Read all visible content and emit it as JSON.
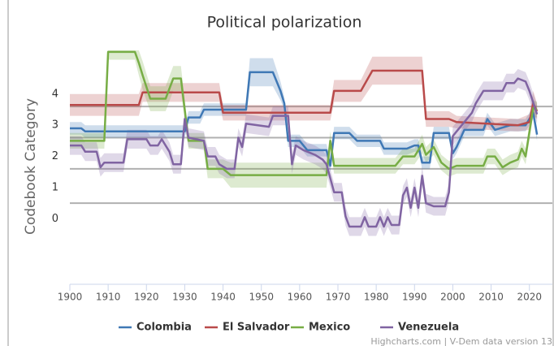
{
  "chart_data": {
    "type": "line",
    "title": "Political polarization",
    "y_axis_label": "Codebook Category",
    "credits": "Highcharts.com | V-Dem data version 13",
    "xlim": [
      1900,
      2026
    ],
    "xticks": [
      1900,
      1910,
      1920,
      1930,
      1940,
      1950,
      1960,
      1970,
      1980,
      1990,
      2000,
      2010,
      2020
    ],
    "ylim": [
      -2.1,
      5.4
    ],
    "yticks": [
      0,
      1,
      2,
      3,
      4
    ],
    "plot_lines": [
      3.6,
      2.6,
      1.6,
      0.5
    ],
    "legend": "bottom",
    "series": [
      {
        "name": "Colombia",
        "color": "#3f78b5",
        "x": [
          1900,
          1903,
          1904,
          1930,
          1931,
          1934,
          1935,
          1946,
          1947,
          1953,
          1955,
          1956,
          1957,
          1960,
          1962,
          1967,
          1968,
          1969,
          1973,
          1975,
          1981,
          1982,
          1988,
          1990,
          1991,
          1992,
          1994,
          1995,
          1999,
          2000,
          2001,
          2003,
          2008,
          2009,
          2011,
          2015,
          2019,
          2021,
          2022
        ],
        "values": [
          2.9,
          2.9,
          2.8,
          2.8,
          3.25,
          3.25,
          3.5,
          3.5,
          4.7,
          4.7,
          4.1,
          3.7,
          2.5,
          2.5,
          2.2,
          2.2,
          1.7,
          2.75,
          2.75,
          2.5,
          2.5,
          2.25,
          2.25,
          2.35,
          2.35,
          1.8,
          1.8,
          2.75,
          2.75,
          2.1,
          2.3,
          2.85,
          2.85,
          3.2,
          2.85,
          3.0,
          3.0,
          3.4,
          2.7
        ],
        "low": [
          2.7,
          2.7,
          2.6,
          2.6,
          3.05,
          3.05,
          3.3,
          3.3,
          4.25,
          4.25,
          3.8,
          3.5,
          2.3,
          2.3,
          2.0,
          2.0,
          1.5,
          2.55,
          2.55,
          2.3,
          2.3,
          2.05,
          2.05,
          2.15,
          2.15,
          1.6,
          1.6,
          2.55,
          2.55,
          1.9,
          2.1,
          2.65,
          2.65,
          3.0,
          2.65,
          2.8,
          2.8,
          3.2,
          2.5
        ],
        "high": [
          3.1,
          3.1,
          3.0,
          3.0,
          3.45,
          3.45,
          3.7,
          3.7,
          5.15,
          5.15,
          4.4,
          3.9,
          2.7,
          2.7,
          2.4,
          2.4,
          1.9,
          2.95,
          2.95,
          2.7,
          2.7,
          2.45,
          2.45,
          2.55,
          2.55,
          2.0,
          2.0,
          2.95,
          2.95,
          2.3,
          2.5,
          3.05,
          3.05,
          3.4,
          3.05,
          3.2,
          3.2,
          3.6,
          2.9
        ]
      },
      {
        "name": "El Salvador",
        "color": "#b94a4a",
        "x": [
          1900,
          1918,
          1919,
          1939,
          1940,
          1968,
          1969,
          1976,
          1979,
          1992,
          1993,
          1999,
          2001,
          2017,
          2020,
          2021,
          2022
        ],
        "values": [
          3.65,
          3.65,
          4.05,
          4.05,
          3.4,
          3.4,
          4.1,
          4.1,
          4.75,
          4.75,
          3.2,
          3.2,
          3.1,
          3.0,
          3.1,
          3.7,
          3.45
        ],
        "low": [
          3.3,
          3.3,
          3.75,
          3.75,
          3.15,
          3.15,
          3.75,
          3.75,
          4.3,
          4.3,
          2.95,
          2.95,
          2.9,
          2.8,
          2.85,
          3.3,
          3.2
        ],
        "high": [
          4.0,
          4.0,
          4.35,
          4.35,
          3.65,
          3.65,
          4.45,
          4.45,
          5.2,
          5.2,
          3.45,
          3.45,
          3.3,
          3.2,
          3.35,
          4.1,
          3.7
        ]
      },
      {
        "name": "Mexico",
        "color": "#77ad45",
        "x": [
          1900,
          1909,
          1910,
          1917,
          1918,
          1919,
          1921,
          1925,
          1927,
          1929,
          1931,
          1935,
          1936,
          1940,
          1942,
          1967,
          1968,
          1969,
          1985,
          1987,
          1990,
          1992,
          1993,
          1995,
          1997,
          1999,
          2001,
          2008,
          2009,
          2011,
          2013,
          2015,
          2017,
          2018,
          2019,
          2021,
          2022
        ],
        "values": [
          2.5,
          2.5,
          5.35,
          5.35,
          5.0,
          4.6,
          3.85,
          3.85,
          4.5,
          4.5,
          2.5,
          2.5,
          1.6,
          1.6,
          1.4,
          1.4,
          2.5,
          1.7,
          1.7,
          2.0,
          2.0,
          2.4,
          2.05,
          2.3,
          1.8,
          1.6,
          1.7,
          1.7,
          2.0,
          2.0,
          1.65,
          1.8,
          1.9,
          2.25,
          2.0,
          3.55,
          3.5
        ],
        "low": [
          2.25,
          2.25,
          5.1,
          5.1,
          4.6,
          4.15,
          3.45,
          3.45,
          4.1,
          4.1,
          2.25,
          2.25,
          1.3,
          1.3,
          1.0,
          1.0,
          2.2,
          1.45,
          1.45,
          1.75,
          1.75,
          2.1,
          1.8,
          2.05,
          1.55,
          1.35,
          1.45,
          1.45,
          1.75,
          1.75,
          1.4,
          1.55,
          1.65,
          2.0,
          1.75,
          3.3,
          3.25
        ],
        "high": [
          2.75,
          2.75,
          5.6,
          5.6,
          5.4,
          5.05,
          4.25,
          4.25,
          4.9,
          4.9,
          2.75,
          2.75,
          1.9,
          1.9,
          1.8,
          1.8,
          2.8,
          1.95,
          1.95,
          2.25,
          2.25,
          2.7,
          2.3,
          2.55,
          2.05,
          1.85,
          1.95,
          1.95,
          2.25,
          2.25,
          1.9,
          2.05,
          2.15,
          2.5,
          2.25,
          3.8,
          3.75
        ]
      },
      {
        "name": "Venezuela",
        "color": "#8064a2",
        "x": [
          1900,
          1903,
          1904,
          1907,
          1908,
          1909,
          1914,
          1915,
          1920,
          1921,
          1923,
          1924,
          1926,
          1927,
          1929,
          1930,
          1931,
          1935,
          1936,
          1938,
          1939,
          1941,
          1943,
          1944,
          1945,
          1946,
          1952,
          1953,
          1957,
          1958,
          1959,
          1961,
          1964,
          1966,
          1967,
          1969,
          1971,
          1972,
          1973,
          1976,
          1977,
          1978,
          1980,
          1981,
          1982,
          1983,
          1984,
          1986,
          1987,
          1988,
          1989,
          1990,
          1991,
          1992,
          1993,
          1995,
          1998,
          1999,
          2000,
          2001,
          2003,
          2005,
          2006,
          2008,
          2013,
          2014,
          2016,
          2017,
          2019,
          2020,
          2022
        ],
        "values": [
          2.35,
          2.35,
          2.15,
          2.15,
          1.65,
          1.8,
          1.8,
          2.55,
          2.55,
          2.35,
          2.35,
          2.55,
          2.15,
          1.75,
          1.75,
          3.2,
          2.6,
          2.5,
          2.0,
          2.0,
          1.75,
          1.6,
          1.6,
          2.6,
          2.3,
          3.05,
          2.95,
          3.3,
          3.3,
          1.75,
          2.35,
          2.2,
          2.05,
          1.9,
          1.75,
          0.85,
          0.85,
          0.08,
          -0.25,
          -0.25,
          0.05,
          -0.25,
          -0.25,
          0.05,
          -0.25,
          0.05,
          -0.2,
          -0.2,
          0.75,
          1.0,
          0.35,
          1.0,
          0.35,
          1.38,
          0.5,
          0.4,
          0.4,
          0.85,
          2.65,
          2.8,
          3.1,
          3.4,
          3.7,
          4.1,
          4.1,
          4.35,
          4.35,
          4.5,
          4.4,
          4.1,
          3.35
        ],
        "low": [
          2.05,
          2.05,
          1.85,
          1.85,
          1.35,
          1.5,
          1.5,
          2.25,
          2.25,
          2.05,
          2.05,
          2.25,
          1.85,
          1.45,
          1.45,
          2.9,
          2.3,
          2.2,
          1.7,
          1.7,
          1.45,
          1.3,
          1.3,
          2.3,
          2.0,
          2.75,
          2.65,
          3.0,
          3.0,
          1.45,
          2.05,
          1.9,
          1.75,
          1.6,
          1.45,
          0.55,
          0.55,
          -0.22,
          -0.55,
          -0.55,
          -0.25,
          -0.55,
          -0.55,
          -0.25,
          -0.55,
          -0.25,
          -0.5,
          -0.5,
          0.45,
          0.7,
          0.05,
          0.7,
          0.05,
          1.08,
          0.2,
          0.1,
          0.1,
          0.55,
          2.35,
          2.5,
          2.8,
          3.1,
          3.4,
          3.8,
          3.8,
          4.05,
          4.05,
          4.2,
          4.1,
          3.8,
          3.05
        ],
        "high": [
          2.65,
          2.65,
          2.45,
          2.45,
          1.95,
          2.1,
          2.1,
          2.85,
          2.85,
          2.65,
          2.65,
          2.85,
          2.45,
          2.05,
          2.05,
          3.5,
          2.9,
          2.8,
          2.3,
          2.3,
          2.05,
          1.9,
          1.9,
          2.9,
          2.6,
          3.35,
          3.25,
          3.6,
          3.6,
          2.05,
          2.65,
          2.5,
          2.35,
          2.2,
          2.05,
          1.15,
          1.15,
          0.38,
          0.05,
          0.05,
          0.35,
          0.05,
          0.05,
          0.35,
          0.05,
          0.35,
          0.1,
          0.1,
          1.05,
          1.3,
          0.65,
          1.3,
          0.65,
          1.68,
          0.8,
          0.7,
          0.7,
          1.15,
          2.95,
          3.1,
          3.4,
          3.7,
          4.0,
          4.4,
          4.4,
          4.65,
          4.65,
          4.8,
          4.7,
          4.4,
          3.65
        ]
      }
    ]
  }
}
